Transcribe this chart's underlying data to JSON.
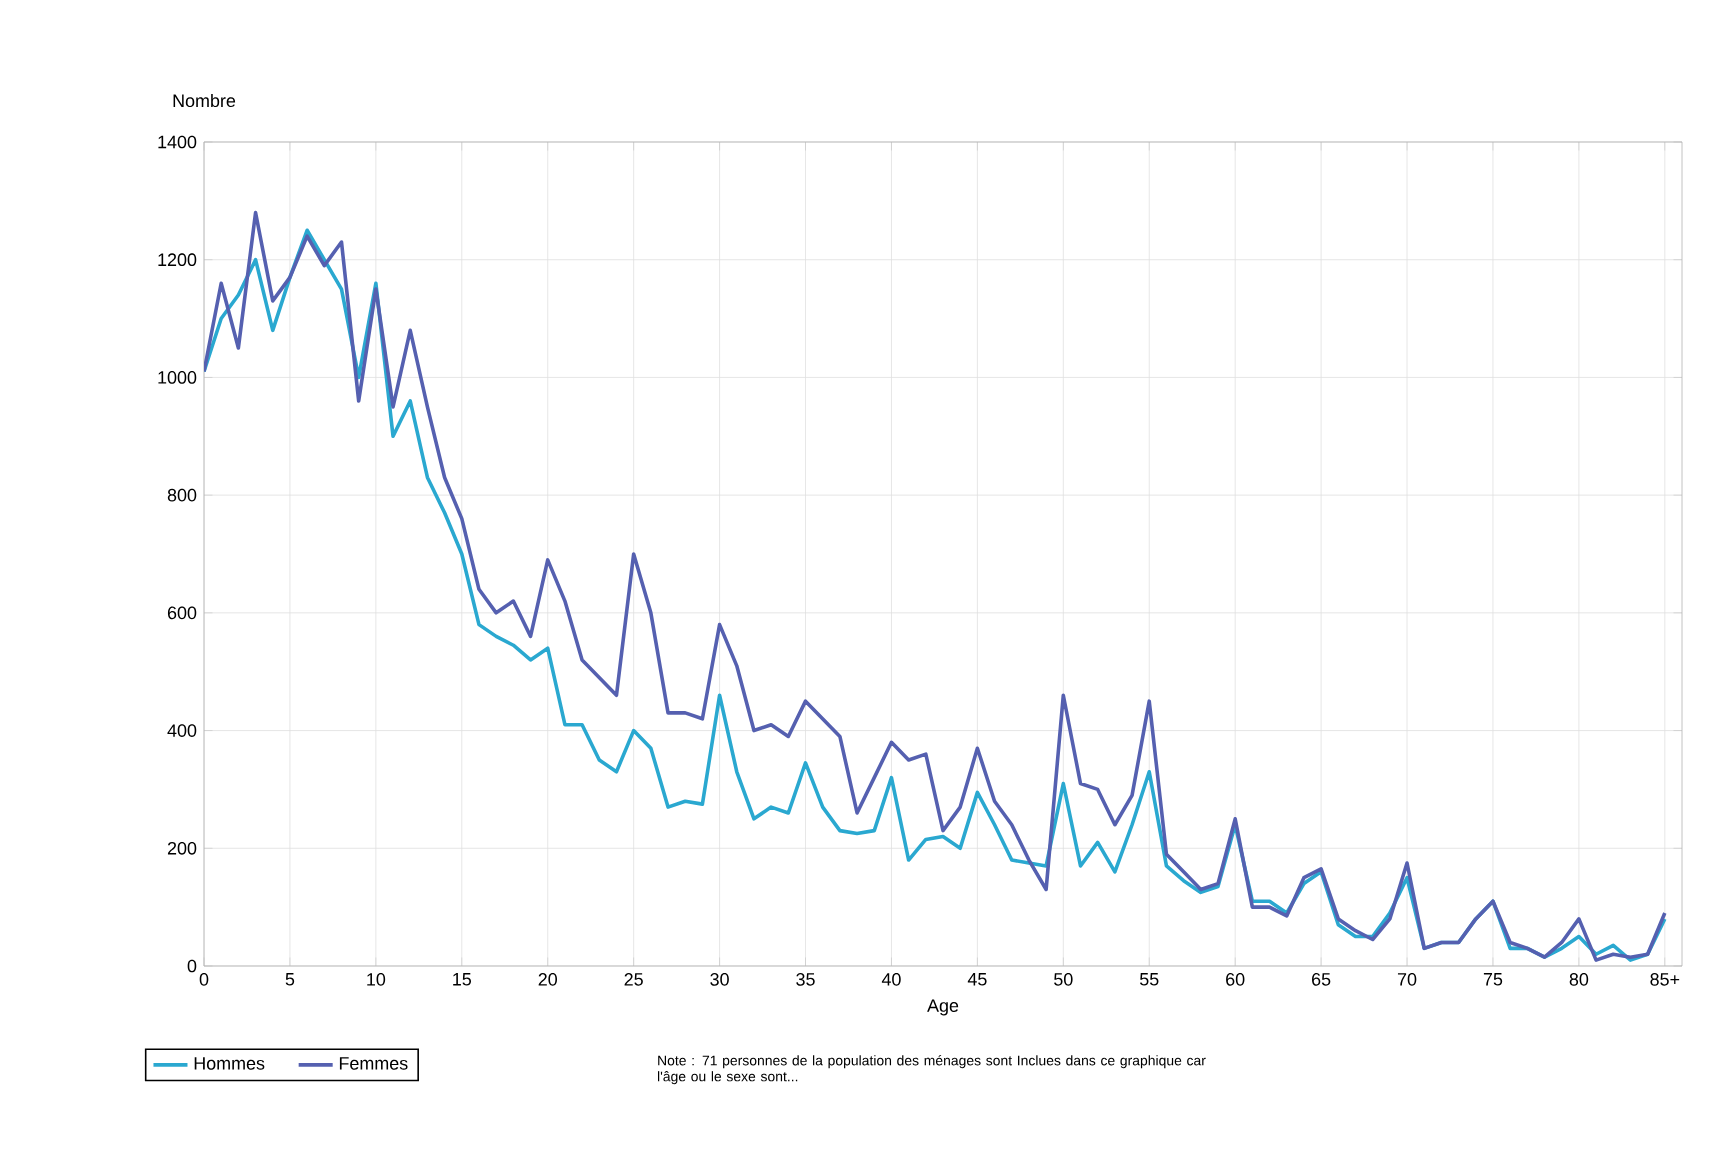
{
  "chart_data": {
    "type": "line",
    "xlabel": "Age",
    "ylabel": "Nombre",
    "x": [
      0,
      1,
      2,
      3,
      4,
      5,
      6,
      7,
      8,
      9,
      10,
      11,
      12,
      13,
      14,
      15,
      16,
      17,
      18,
      19,
      20,
      21,
      22,
      23,
      24,
      25,
      26,
      27,
      28,
      29,
      30,
      31,
      32,
      33,
      34,
      35,
      36,
      37,
      38,
      39,
      40,
      41,
      42,
      43,
      44,
      45,
      46,
      47,
      48,
      49,
      50,
      51,
      52,
      53,
      54,
      55,
      56,
      57,
      58,
      59,
      60,
      61,
      62,
      63,
      64,
      65,
      66,
      67,
      68,
      69,
      70,
      71,
      72,
      73,
      74,
      75,
      76,
      77,
      78,
      79,
      80,
      81,
      82,
      83,
      84,
      85
    ],
    "series": [
      {
        "name": "Hommes",
        "color": "#2aa8d0",
        "values": [
          1010,
          1100,
          1140,
          1200,
          1080,
          1170,
          1250,
          1200,
          1150,
          1000,
          1160,
          900,
          960,
          830,
          770,
          700,
          580,
          560,
          545,
          520,
          540,
          410,
          410,
          350,
          330,
          400,
          370,
          270,
          280,
          275,
          460,
          330,
          250,
          270,
          260,
          345,
          270,
          230,
          225,
          230,
          320,
          180,
          215,
          220,
          200,
          295,
          240,
          180,
          175,
          170,
          310,
          170,
          210,
          160,
          240,
          330,
          170,
          145,
          125,
          135,
          240,
          110,
          110,
          90,
          140,
          160,
          70,
          50,
          50,
          90,
          150,
          30,
          40,
          40,
          80,
          110,
          30,
          30,
          15,
          30,
          50,
          20,
          35,
          10,
          20,
          80
        ]
      },
      {
        "name": "Femmes",
        "color": "#5560b0",
        "values": [
          1010,
          1160,
          1050,
          1280,
          1130,
          1170,
          1240,
          1190,
          1230,
          960,
          1150,
          950,
          1080,
          950,
          830,
          760,
          640,
          600,
          620,
          560,
          690,
          620,
          520,
          490,
          460,
          700,
          600,
          430,
          430,
          420,
          580,
          510,
          400,
          410,
          390,
          450,
          420,
          390,
          260,
          320,
          380,
          350,
          360,
          230,
          270,
          370,
          280,
          240,
          180,
          130,
          460,
          310,
          300,
          240,
          290,
          450,
          190,
          160,
          130,
          140,
          250,
          100,
          100,
          85,
          150,
          165,
          80,
          60,
          45,
          80,
          175,
          30,
          40,
          40,
          80,
          110,
          40,
          30,
          15,
          40,
          80,
          10,
          20,
          15,
          20,
          90
        ]
      }
    ],
    "xlim": [
      0,
      86
    ],
    "ylim": [
      0,
      1400
    ],
    "xticks": [
      0,
      5,
      10,
      15,
      20,
      25,
      30,
      35,
      40,
      45,
      50,
      55,
      60,
      65,
      70,
      75,
      80,
      {
        "value": 85,
        "label": "85+"
      }
    ],
    "yticks": [
      0,
      200,
      400,
      600,
      800,
      1000,
      1200,
      1400
    ],
    "grid": true,
    "legend": "bottom",
    "marker": "none",
    "line_style": "solid",
    "annotations": [
      "Note : 71 personnes de la population des ménages sont Inclues dans ce graphique car l'âge ou le sexe sont..."
    ]
  }
}
